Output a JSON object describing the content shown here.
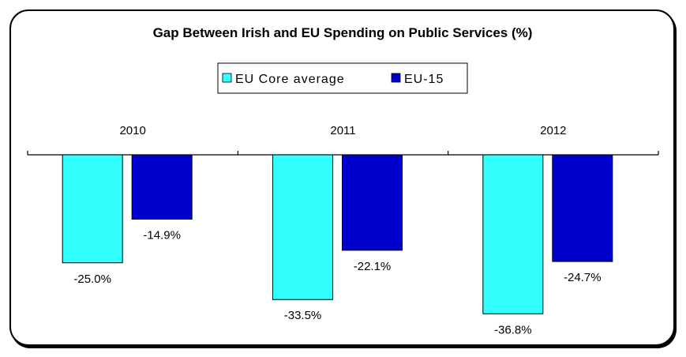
{
  "chart_data": {
    "type": "bar",
    "title": "Gap Between Irish and EU Spending on Public Services (%)",
    "categories": [
      "2010",
      "2011",
      "2012"
    ],
    "series": [
      {
        "name": "EU Core average",
        "values": [
          -25.0,
          -33.5,
          -36.8
        ],
        "labels": [
          "-25.0%",
          "-33.5%",
          "-36.8%"
        ],
        "color": "#33ffff"
      },
      {
        "name": "EU-15",
        "values": [
          -14.9,
          -22.1,
          -24.7
        ],
        "labels": [
          "-14.9%",
          "-22.1%",
          "-24.7%"
        ],
        "color": "#0000cc"
      }
    ],
    "xlabel": "",
    "ylabel": "",
    "ylim": [
      -40,
      0
    ],
    "x_axis_position": "top",
    "legend_position": "top",
    "grid": false
  }
}
